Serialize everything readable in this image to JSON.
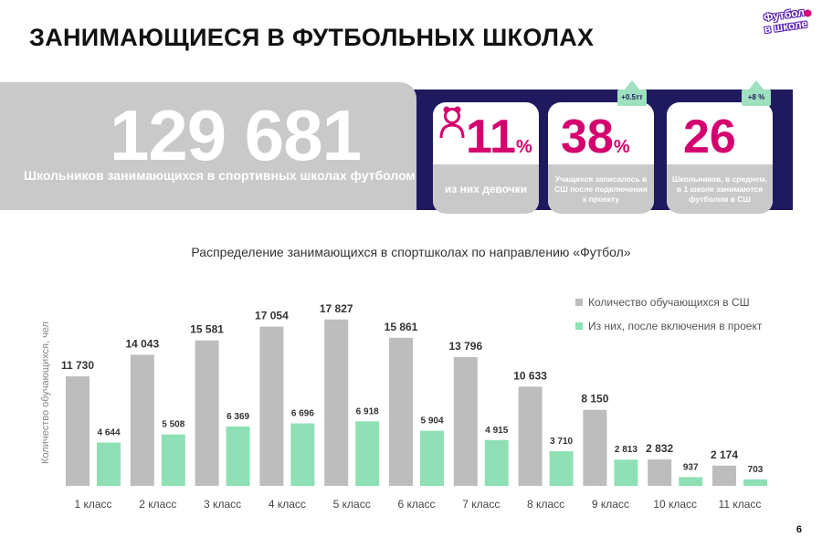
{
  "header": {
    "title": "ЗАНИМАЮЩИЕСЯ В ФУТБОЛЬНЫХ ШКОЛАХ",
    "logo_text_line1": "Футбол",
    "logo_text_line2": "в школе"
  },
  "summary": {
    "big_number": "129 681",
    "big_caption": "Школьников занимающихся в спортивных школах футболом"
  },
  "stats": [
    {
      "value": "11",
      "unit": "%",
      "caption": "из них девочки",
      "icon": "girl-icon"
    },
    {
      "value": "38",
      "unit": "%",
      "caption": "Учащихся записалось в СШ после подключения к проекту",
      "badge": "+0.5тт"
    },
    {
      "value": "26",
      "unit": "",
      "caption": "Школьников, в среднем, в 1 школе занимаются футболом в СШ",
      "badge": "+8 %"
    }
  ],
  "colors": {
    "navy": "#1f1a5e",
    "magenta": "#d4006e",
    "gray_bar": "#bdbdbd",
    "green_bar": "#8ee0b4"
  },
  "chart_data": {
    "type": "bar",
    "title": "Распределение занимающихся в спортшколах по направлению «Футбол»",
    "ylabel": "Количество обучающихся, чел",
    "categories": [
      "1 класс",
      "2 класс",
      "3 класс",
      "4 класс",
      "5 класс",
      "6 класс",
      "7 класс",
      "8 класс",
      "9 класс",
      "10 класс",
      "11 класс"
    ],
    "series": [
      {
        "name": "Количество обучающихся в СШ",
        "values": [
          11730,
          14043,
          15581,
          17054,
          17827,
          15861,
          13796,
          10633,
          8150,
          2832,
          2174
        ],
        "labels": [
          "11 730",
          "14 043",
          "15 581",
          "17 054",
          "17 827",
          "15 861",
          "13 796",
          "10 633",
          "8 150",
          "2 832",
          "2 174"
        ]
      },
      {
        "name": "Из них, после включения в проект",
        "values": [
          4644,
          5508,
          6369,
          6696,
          6918,
          5904,
          4915,
          3710,
          2813,
          937,
          703
        ],
        "labels": [
          "4 644",
          "5 508",
          "6 369",
          "6 696",
          "6 918",
          "5 904",
          "4 915",
          "3 710",
          "2 813",
          "937",
          "703"
        ]
      }
    ],
    "ylim": [
      0,
      18000
    ],
    "grid": false,
    "legend_position": "top-right"
  },
  "footer": {
    "page_number": "6"
  }
}
